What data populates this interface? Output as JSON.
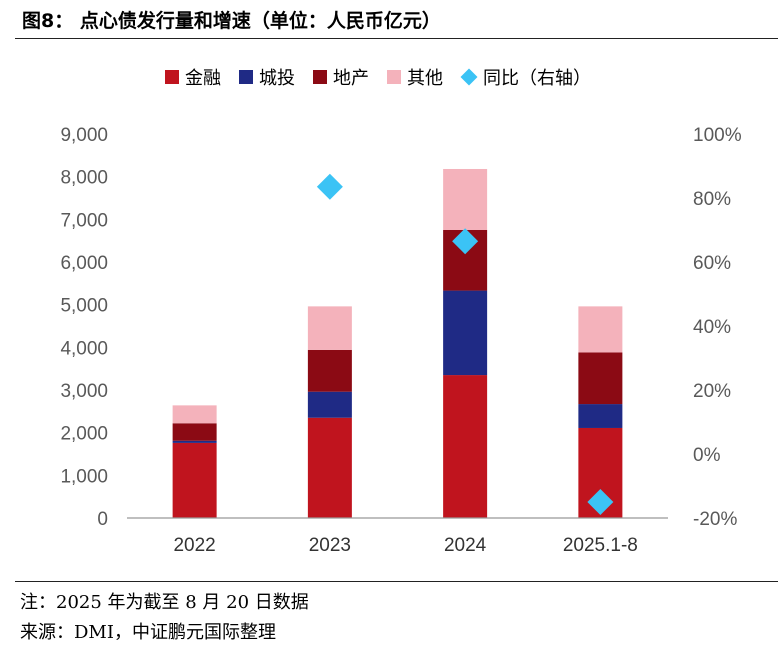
{
  "header": {
    "title": "图8： 点心债发行量和增速（单位：人民币亿元）"
  },
  "footer": {
    "note": "注：2025 年为截至 8 月 20 日数据",
    "source": "来源：DMI，中证鹏元国际整理"
  },
  "colors": {
    "finance": "#c0141e",
    "lgfv": "#1f2a85",
    "property": "#8b0a14",
    "other": "#f4b2bb",
    "yoy": "#3bc3f5",
    "axis": "#333333",
    "tick": "#595959"
  },
  "chart_data": {
    "type": "bar",
    "stacked": true,
    "categories": [
      "2022",
      "2023",
      "2024",
      "2025.1-8"
    ],
    "series": [
      {
        "name": "金融",
        "values": [
          1760,
          2350,
          3350,
          2110
        ]
      },
      {
        "name": "城投",
        "values": [
          50,
          610,
          1980,
          560
        ]
      },
      {
        "name": "地产",
        "values": [
          410,
          980,
          1420,
          1210
        ]
      },
      {
        "name": "其他",
        "values": [
          420,
          1020,
          1430,
          1080
        ]
      }
    ],
    "line_series": {
      "name": "同比（右轴）",
      "values": [
        null,
        83.5,
        66.5,
        -15
      ],
      "axis": "right",
      "marker": "diamond"
    },
    "y_left": {
      "ticks": [
        "0",
        "1,000",
        "2,000",
        "3,000",
        "4,000",
        "5,000",
        "6,000",
        "7,000",
        "8,000",
        "9,000"
      ],
      "range": [
        0,
        9000
      ]
    },
    "y_right": {
      "ticks": [
        "-20%",
        "0%",
        "20%",
        "40%",
        "60%",
        "80%",
        "100%"
      ],
      "range": [
        -20,
        100
      ]
    },
    "legend": {
      "labels": [
        "金融",
        "城投",
        "地产",
        "其他",
        "同比（右轴）"
      ],
      "position": "top"
    },
    "grid": false
  }
}
